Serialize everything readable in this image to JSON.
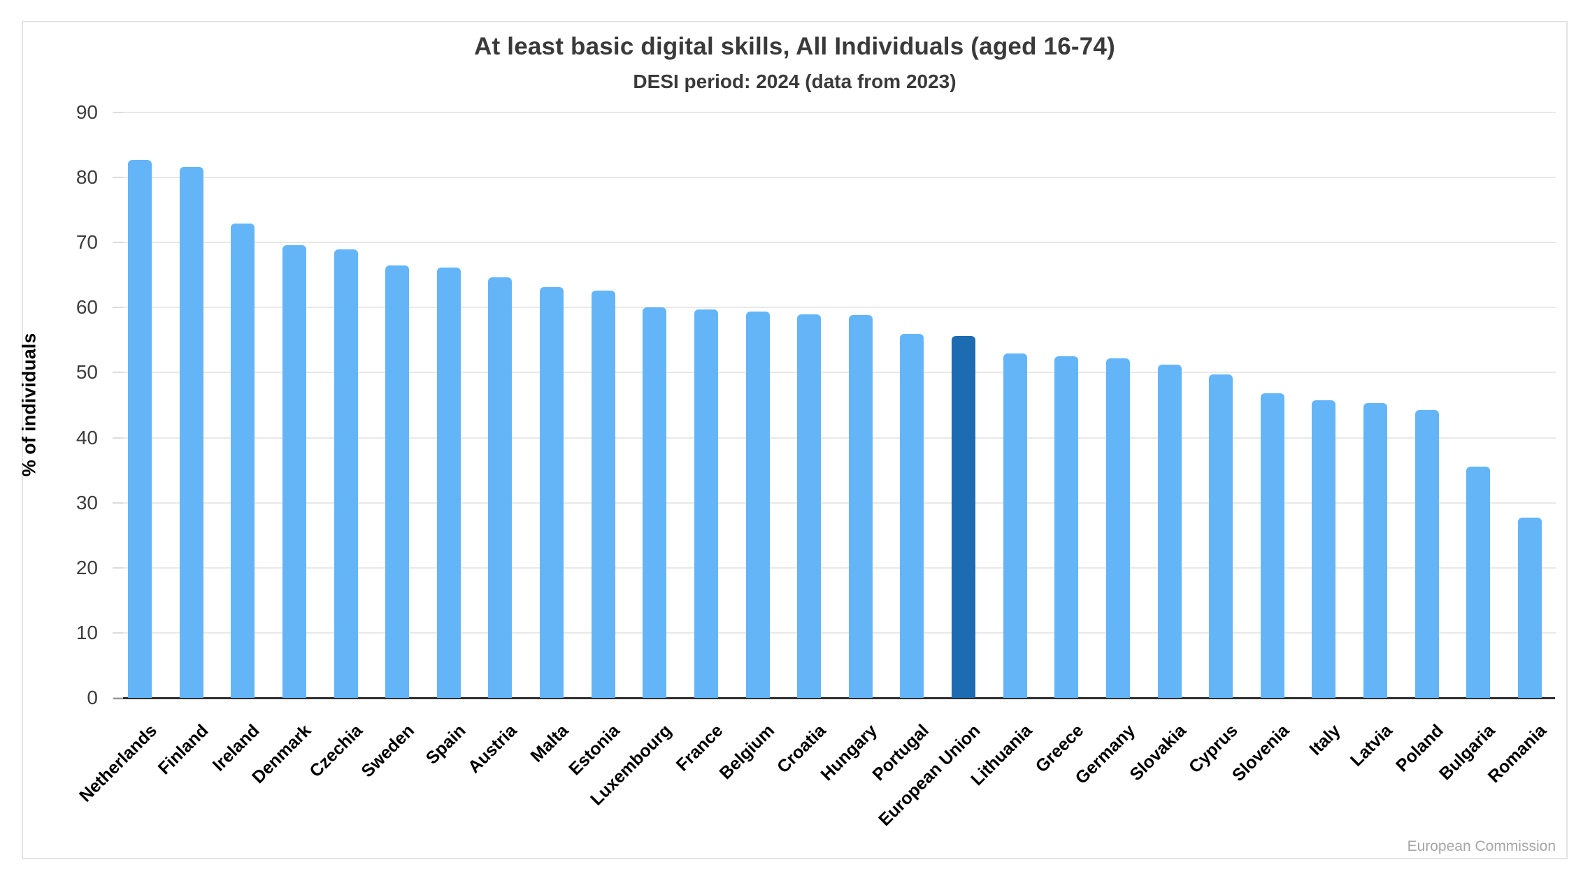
{
  "header": {
    "title": "At least basic digital skills, All Individuals (aged 16-74)",
    "subtitle": "DESI period: 2024 (data from 2023)"
  },
  "footer": {
    "attribution": "European Commission"
  },
  "chart_data": {
    "type": "bar",
    "title": "At least basic digital skills, All Individuals (aged 16-74)",
    "subtitle": "DESI period: 2024 (data from 2023)",
    "xlabel": "",
    "ylabel": "% of individuals",
    "ylim": [
      0,
      90
    ],
    "yticks": [
      0,
      10,
      20,
      30,
      40,
      50,
      60,
      70,
      80,
      90
    ],
    "grid": true,
    "legend": null,
    "categories": [
      "Netherlands",
      "Finland",
      "Ireland",
      "Denmark",
      "Czechia",
      "Sweden",
      "Spain",
      "Austria",
      "Malta",
      "Estonia",
      "Luxembourg",
      "France",
      "Belgium",
      "Croatia",
      "Hungary",
      "Portugal",
      "European Union",
      "Lithuania",
      "Greece",
      "Germany",
      "Slovakia",
      "Cyprus",
      "Slovenia",
      "Italy",
      "Latvia",
      "Poland",
      "Bulgaria",
      "Romania"
    ],
    "values": [
      82.7,
      81.6,
      72.9,
      69.6,
      69.0,
      66.5,
      66.2,
      64.7,
      63.1,
      62.6,
      60.0,
      59.7,
      59.4,
      59.0,
      58.9,
      56.0,
      55.6,
      52.9,
      52.5,
      52.2,
      51.2,
      49.7,
      46.8,
      45.8,
      45.3,
      44.3,
      35.5,
      27.7
    ],
    "highlight_category": "European Union",
    "highlight_index": 16,
    "colors": {
      "bar": "#64b5f8",
      "highlight_bar": "#1d6cb1",
      "gridline": "#e8e8e8",
      "axis_line": "#2e2e2e",
      "tick_label": "#3d3d3d",
      "category_label": "#000000",
      "title_text": "#3a3a3a",
      "attribution_text": "#a6a6a6"
    }
  }
}
